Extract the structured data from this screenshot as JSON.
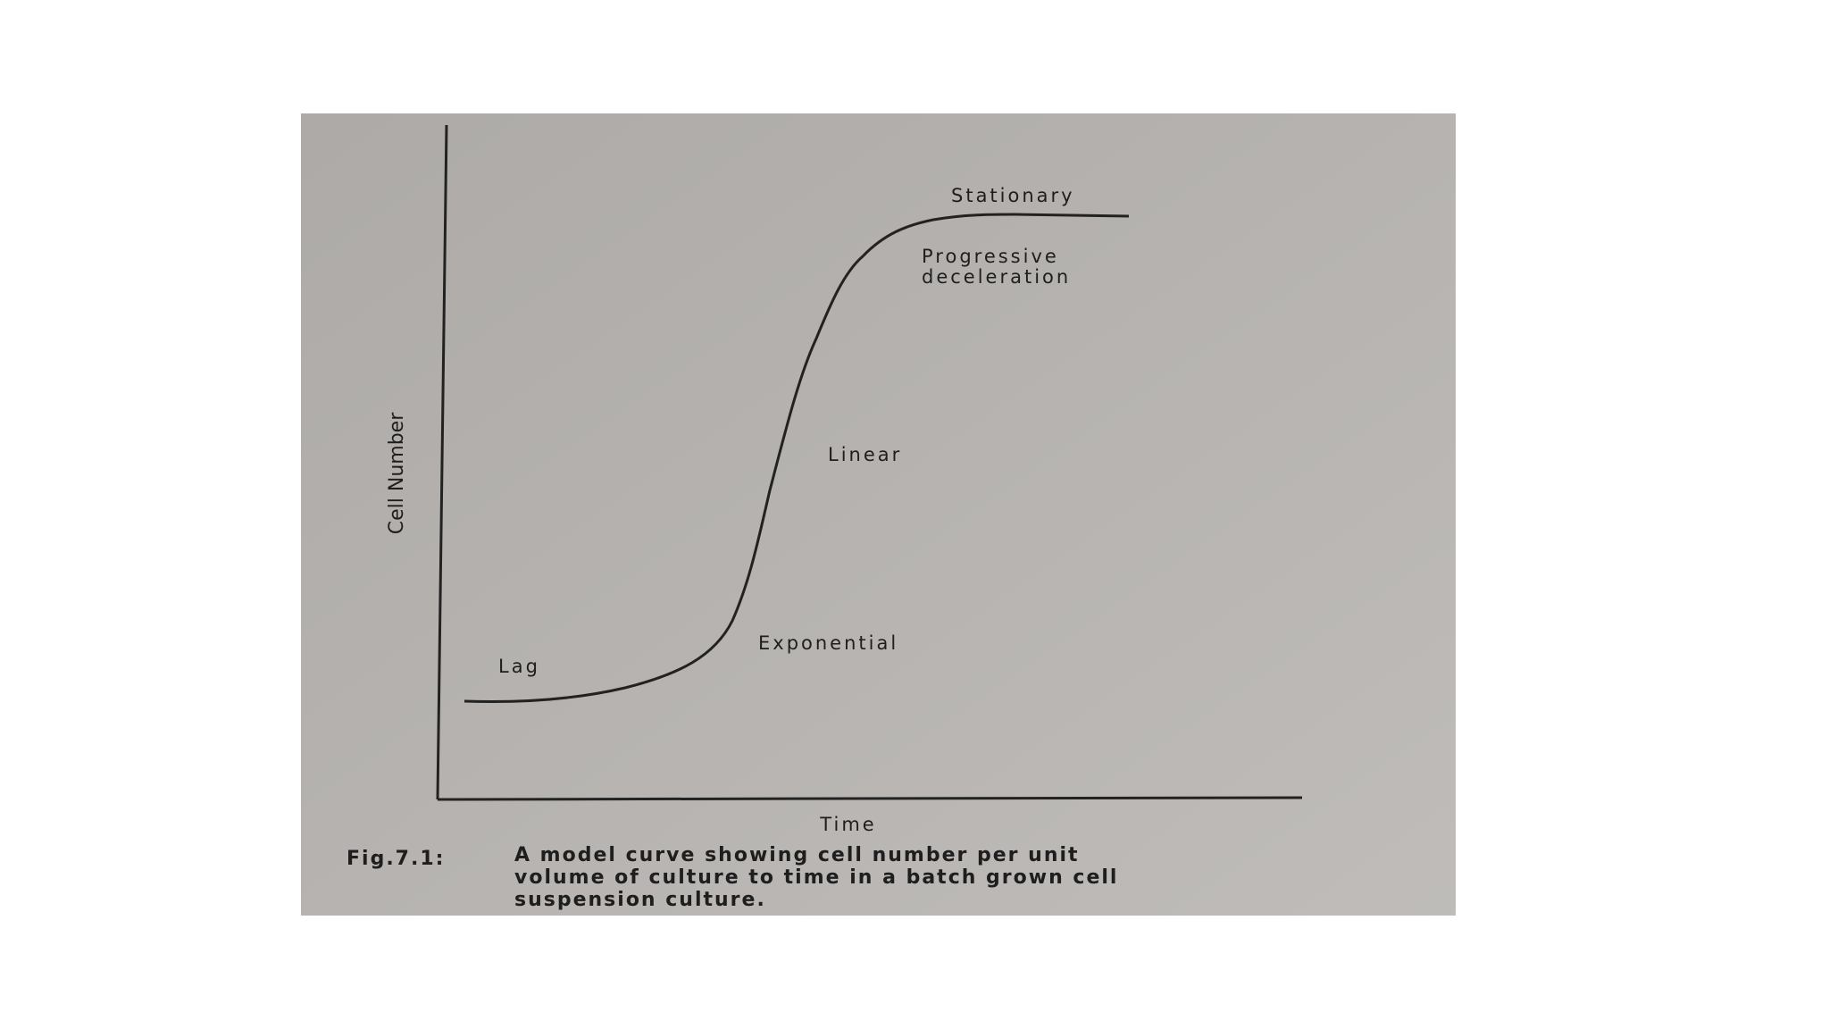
{
  "figure": {
    "axis_labels": {
      "y": "Cell Number",
      "x": "Time"
    },
    "phases": [
      "Lag",
      "Exponential",
      "Linear",
      "Progressive",
      "deceleration",
      "Stationary"
    ],
    "caption": {
      "number": "Fig.7.1:",
      "lines": [
        "A model curve showing cell number per unit",
        "volume of culture to time in a batch grown cell",
        "suspension culture."
      ]
    }
  }
}
